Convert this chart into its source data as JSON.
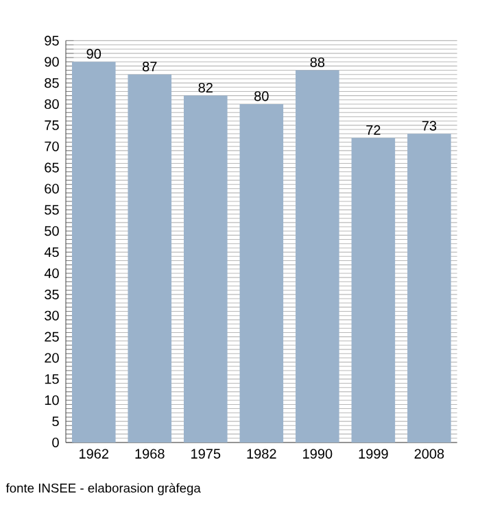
{
  "chart_data": {
    "type": "bar",
    "categories": [
      "1962",
      "1968",
      "1975",
      "1982",
      "1990",
      "1999",
      "2008"
    ],
    "values": [
      90,
      87,
      82,
      80,
      88,
      72,
      73
    ],
    "color": "#9ab2cb",
    "data_labels": true,
    "grid": "y",
    "ylim": [
      0,
      95
    ],
    "yticks": [
      0,
      {
        "value": 1,
        "label": null
      },
      {
        "value": 2,
        "label": null
      },
      {
        "value": 3,
        "label": null
      },
      {
        "value": 4,
        "label": null
      },
      5,
      {
        "value": 6,
        "label": null
      },
      {
        "value": 7,
        "label": null
      },
      {
        "value": 8,
        "label": null
      },
      {
        "value": 9,
        "label": null
      },
      10,
      {
        "value": 11,
        "label": null
      },
      {
        "value": 12,
        "label": null
      },
      {
        "value": 13,
        "label": null
      },
      {
        "value": 14,
        "label": null
      },
      15,
      {
        "value": 16,
        "label": null
      },
      {
        "value": 17,
        "label": null
      },
      {
        "value": 18,
        "label": null
      },
      {
        "value": 19,
        "label": null
      },
      20,
      {
        "value": 21,
        "label": null
      },
      {
        "value": 22,
        "label": null
      },
      {
        "value": 23,
        "label": null
      },
      {
        "value": 24,
        "label": null
      },
      25,
      {
        "value": 26,
        "label": null
      },
      {
        "value": 27,
        "label": null
      },
      {
        "value": 28,
        "label": null
      },
      {
        "value": 29,
        "label": null
      },
      30,
      {
        "value": 31,
        "label": null
      },
      {
        "value": 32,
        "label": null
      },
      {
        "value": 33,
        "label": null
      },
      {
        "value": 34,
        "label": null
      },
      35,
      {
        "value": 36,
        "label": null
      },
      {
        "value": 37,
        "label": null
      },
      {
        "value": 38,
        "label": null
      },
      {
        "value": 39,
        "label": null
      },
      40,
      {
        "value": 41,
        "label": null
      },
      {
        "value": 42,
        "label": null
      },
      {
        "value": 43,
        "label": null
      },
      {
        "value": 44,
        "label": null
      },
      45,
      {
        "value": 46,
        "label": null
      },
      {
        "value": 47,
        "label": null
      },
      {
        "value": 48,
        "label": null
      },
      {
        "value": 49,
        "label": null
      },
      50,
      {
        "value": 51,
        "label": null
      },
      {
        "value": 52,
        "label": null
      },
      {
        "value": 53,
        "label": null
      },
      {
        "value": 54,
        "label": null
      },
      55,
      {
        "value": 56,
        "label": null
      },
      {
        "value": 57,
        "label": null
      },
      {
        "value": 58,
        "label": null
      },
      {
        "value": 59,
        "label": null
      },
      60,
      {
        "value": 61,
        "label": null
      },
      {
        "value": 62,
        "label": null
      },
      {
        "value": 63,
        "label": null
      },
      {
        "value": 64,
        "label": null
      },
      65,
      {
        "value": 66,
        "label": null
      },
      {
        "value": 67,
        "label": null
      },
      {
        "value": 68,
        "label": null
      },
      {
        "value": 69,
        "label": null
      },
      70,
      {
        "value": 71,
        "label": null
      },
      {
        "value": 72,
        "label": null
      },
      {
        "value": 73,
        "label": null
      },
      {
        "value": 74,
        "label": null
      },
      75,
      {
        "value": 76,
        "label": null
      },
      {
        "value": 77,
        "label": null
      },
      {
        "value": 78,
        "label": null
      },
      {
        "value": 79,
        "label": null
      },
      80,
      {
        "value": 81,
        "label": null
      },
      {
        "value": 82,
        "label": null
      },
      {
        "value": 83,
        "label": null
      },
      {
        "value": 84,
        "label": null
      },
      85,
      {
        "value": 86,
        "label": null
      },
      {
        "value": 87,
        "label": null
      },
      {
        "value": 88,
        "label": null
      },
      {
        "value": 89,
        "label": null
      },
      90,
      {
        "value": 91,
        "label": null
      },
      {
        "value": 92,
        "label": null
      },
      {
        "value": 93,
        "label": null
      },
      {
        "value": 94,
        "label": null
      },
      95
    ],
    "annotations": [
      "fonte INSEE - elaborasion gràfega"
    ]
  }
}
